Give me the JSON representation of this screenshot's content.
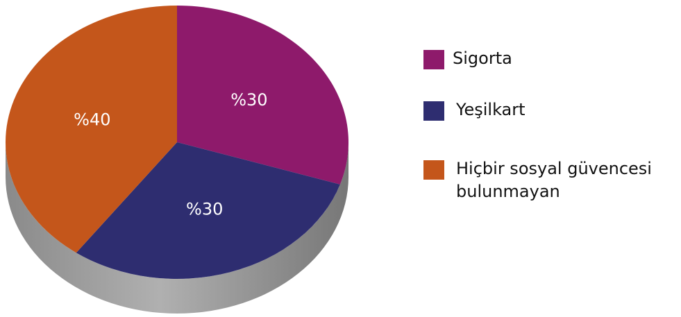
{
  "chart_data": {
    "type": "pie",
    "categories": [
      "Sigorta",
      "Yeşilkart",
      "Hiçbir sosyal güvencesi bulunmayan"
    ],
    "values": [
      30,
      30,
      40
    ],
    "value_labels": [
      "%30",
      "%30",
      "%40"
    ],
    "colors": [
      "#8e1a6b",
      "#2e2d70",
      "#c4561b"
    ],
    "legend": "right"
  }
}
